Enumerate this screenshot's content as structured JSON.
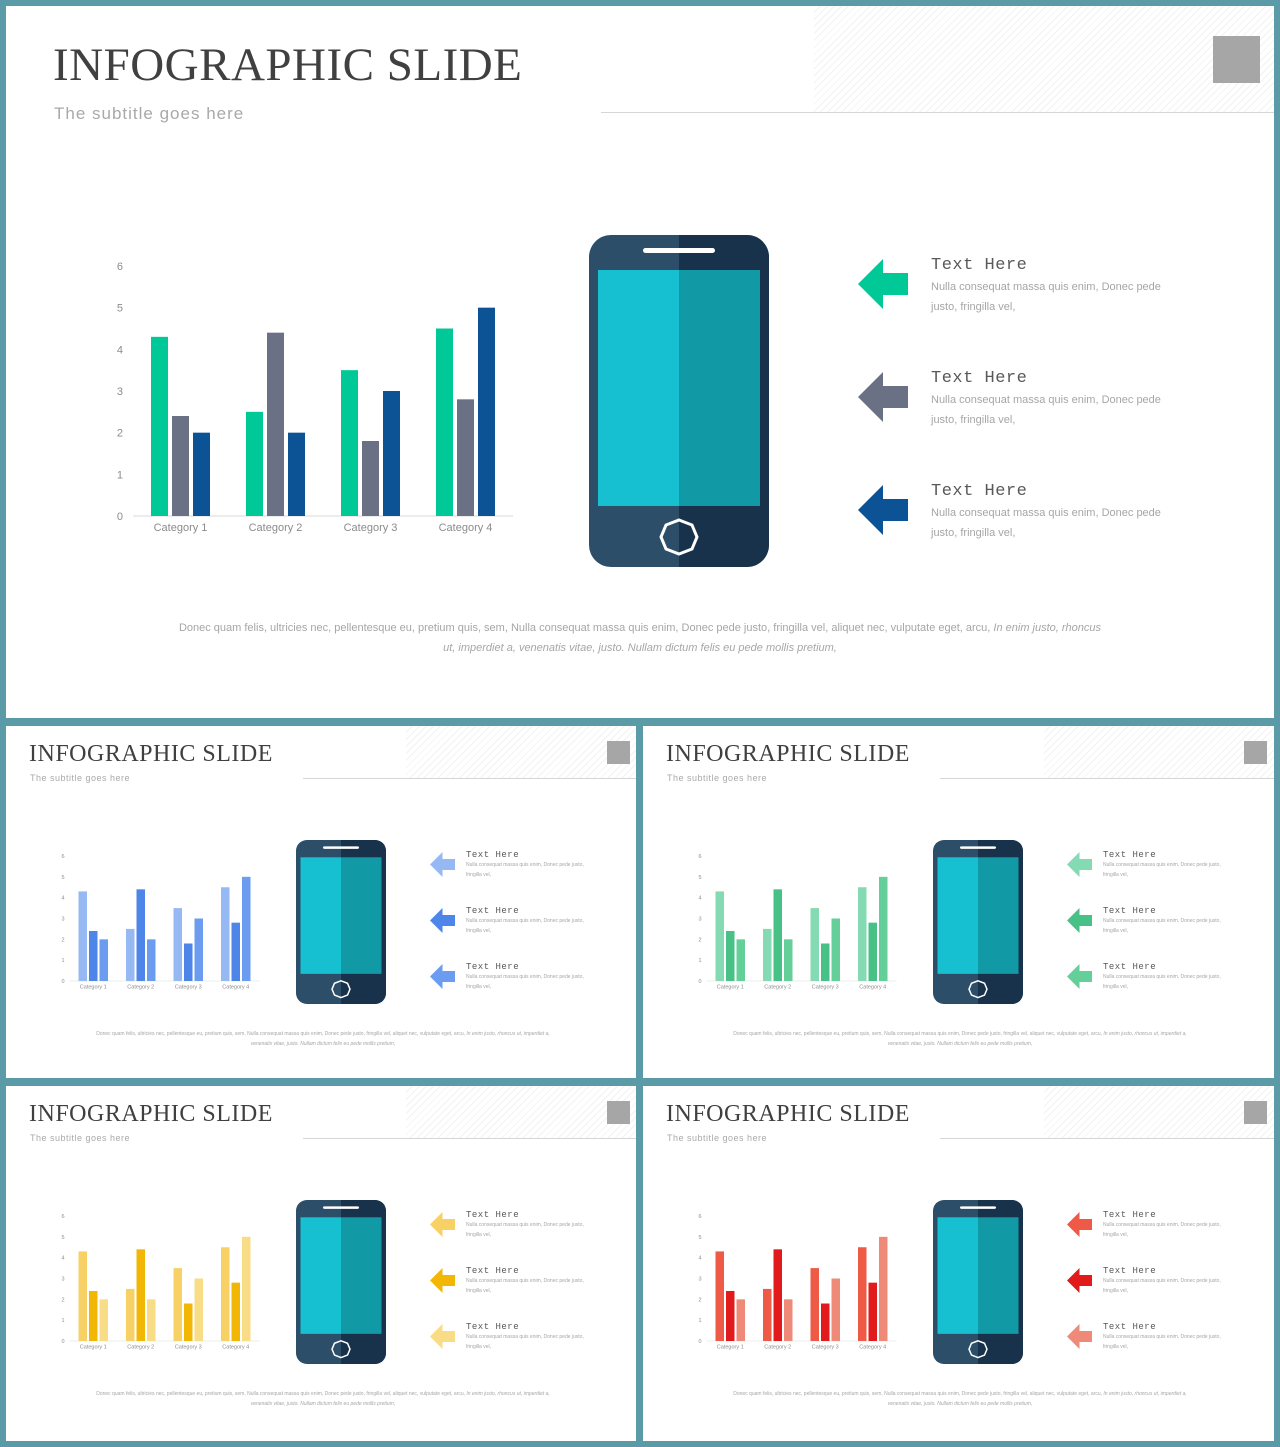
{
  "title": "INFOGRAPHIC SLIDE",
  "subtitle": "The subtitle goes here",
  "text_items": [
    {
      "heading": "Text Here",
      "body": "Nulla consequat massa quis enim, Donec pede justo, fringilla vel,"
    },
    {
      "heading": "Text Here",
      "body": "Nulla consequat massa quis enim, Donec pede justo, fringilla vel,"
    },
    {
      "heading": "Text Here",
      "body": "Nulla consequat massa quis enim, Donec pede justo, fringilla vel,"
    }
  ],
  "paragraph": {
    "normal": "Donec quam felis, ultricies nec, pellentesque eu, pretium quis, sem, Nulla consequat massa quis enim, Donec pede justo, fringilla vel, aliquet nec, vulputate eget, arcu,",
    "italic": "In enim justo, rhoncus ut, imperdiet a, venenatis vitae, justo. Nullam dictum felis eu pede mollis pretium,"
  },
  "icons": {
    "arrow": "left-arrow-icon",
    "phone": "smartphone-icon"
  },
  "phone_colors": {
    "body_left": "#2c4e68",
    "body_right": "#17324a",
    "screen_left": "#16c0d0",
    "screen_right": "#1299a6",
    "speaker": "#ffffff",
    "button": "#ffffff"
  },
  "chart_data": {
    "type": "bar",
    "categories": [
      "Category 1",
      "Category 2",
      "Category 3",
      "Category 4"
    ],
    "series": [
      {
        "values": [
          4.3,
          2.5,
          3.5,
          4.5
        ]
      },
      {
        "values": [
          2.4,
          4.4,
          1.8,
          2.8
        ]
      },
      {
        "values": [
          2.0,
          2.0,
          3.0,
          5.0
        ]
      }
    ],
    "ylim": [
      0,
      6
    ],
    "yticks": [
      0,
      1,
      2,
      3,
      4,
      5,
      6
    ],
    "xlabel": "",
    "ylabel": "",
    "grid": false,
    "legend": "none"
  },
  "themes": [
    {
      "series_colors": [
        "#00c896",
        "#6b7185",
        "#0b5394"
      ],
      "arrow_colors": [
        "#00c896",
        "#6b7185",
        "#0b5394"
      ]
    },
    {
      "series_colors": [
        "#97b9f3",
        "#4d86e8",
        "#6b9cf0"
      ],
      "arrow_colors": [
        "#97b9f3",
        "#4d86e8",
        "#6b9cf0"
      ]
    },
    {
      "series_colors": [
        "#84dab2",
        "#47c186",
        "#64cf99"
      ],
      "arrow_colors": [
        "#84dab2",
        "#47c186",
        "#64cf99"
      ]
    },
    {
      "series_colors": [
        "#f7d066",
        "#f2b705",
        "#f9dc86"
      ],
      "arrow_colors": [
        "#f7d066",
        "#f2b705",
        "#f9dc86"
      ]
    },
    {
      "series_colors": [
        "#ee5a45",
        "#e11b1b",
        "#f08a78"
      ],
      "arrow_colors": [
        "#ee5a45",
        "#e11b1b",
        "#f08a78"
      ]
    }
  ]
}
